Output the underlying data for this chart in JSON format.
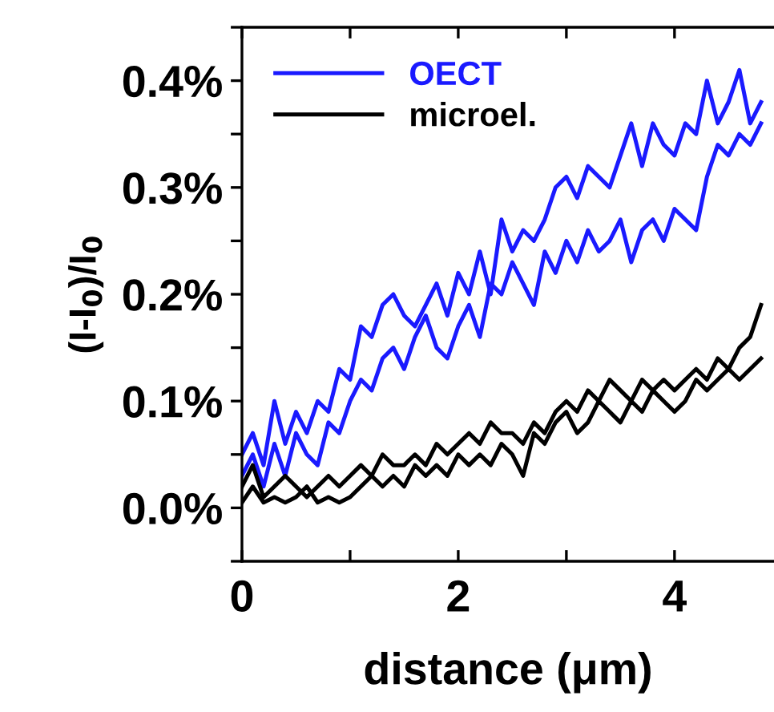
{
  "chart_data": {
    "type": "line",
    "xlabel": "distance (μm)",
    "ylabel": "(I-I$_{0}$)/I$_{0}$",
    "x": [
      0,
      0.1,
      0.2,
      0.3,
      0.4,
      0.5,
      0.6,
      0.7,
      0.8,
      0.9,
      1.0,
      1.1,
      1.2,
      1.3,
      1.4,
      1.5,
      1.6,
      1.7,
      1.8,
      1.9,
      2.0,
      2.1,
      2.2,
      2.3,
      2.4,
      2.5,
      2.6,
      2.7,
      2.8,
      2.9,
      3.0,
      3.1,
      3.2,
      3.3,
      3.4,
      3.5,
      3.6,
      3.7,
      3.8,
      3.9,
      4.0,
      4.1,
      4.2,
      4.3,
      4.4,
      4.5,
      4.6,
      4.7,
      4.8
    ],
    "series": [
      {
        "name": "OECT",
        "color": "#1a1aff",
        "values": [
          0.05,
          0.07,
          0.04,
          0.1,
          0.06,
          0.09,
          0.07,
          0.1,
          0.09,
          0.13,
          0.12,
          0.17,
          0.16,
          0.19,
          0.2,
          0.18,
          0.17,
          0.19,
          0.21,
          0.18,
          0.22,
          0.2,
          0.24,
          0.2,
          0.27,
          0.24,
          0.26,
          0.25,
          0.27,
          0.3,
          0.31,
          0.29,
          0.32,
          0.31,
          0.3,
          0.33,
          0.36,
          0.32,
          0.36,
          0.34,
          0.33,
          0.36,
          0.35,
          0.4,
          0.36,
          0.38,
          0.41,
          0.36,
          0.38
        ]
      },
      {
        "color": "#1a1aff",
        "values": [
          0.03,
          0.05,
          0.02,
          0.06,
          0.03,
          0.07,
          0.05,
          0.04,
          0.08,
          0.07,
          0.1,
          0.12,
          0.11,
          0.14,
          0.15,
          0.13,
          0.16,
          0.18,
          0.15,
          0.14,
          0.17,
          0.19,
          0.16,
          0.21,
          0.2,
          0.23,
          0.21,
          0.19,
          0.24,
          0.22,
          0.25,
          0.23,
          0.26,
          0.24,
          0.25,
          0.27,
          0.23,
          0.26,
          0.27,
          0.25,
          0.28,
          0.27,
          0.26,
          0.31,
          0.34,
          0.33,
          0.35,
          0.34,
          0.36
        ]
      },
      {
        "name": "microel.",
        "color": "#000000",
        "values": [
          0.02,
          0.04,
          0.01,
          0.02,
          0.03,
          0.02,
          0.01,
          0.02,
          0.03,
          0.02,
          0.03,
          0.04,
          0.03,
          0.05,
          0.04,
          0.04,
          0.05,
          0.04,
          0.06,
          0.05,
          0.06,
          0.07,
          0.06,
          0.08,
          0.07,
          0.07,
          0.06,
          0.08,
          0.07,
          0.09,
          0.1,
          0.09,
          0.11,
          0.1,
          0.12,
          0.11,
          0.1,
          0.12,
          0.11,
          0.12,
          0.11,
          0.12,
          0.13,
          0.12,
          0.14,
          0.13,
          0.15,
          0.16,
          0.19
        ]
      },
      {
        "color": "#000000",
        "values": [
          0.005,
          0.02,
          0.005,
          0.01,
          0.005,
          0.01,
          0.02,
          0.005,
          0.01,
          0.005,
          0.01,
          0.02,
          0.03,
          0.02,
          0.03,
          0.02,
          0.04,
          0.03,
          0.04,
          0.03,
          0.05,
          0.04,
          0.05,
          0.04,
          0.06,
          0.05,
          0.03,
          0.07,
          0.06,
          0.08,
          0.09,
          0.07,
          0.08,
          0.1,
          0.09,
          0.08,
          0.1,
          0.09,
          0.11,
          0.1,
          0.09,
          0.1,
          0.12,
          0.11,
          0.12,
          0.13,
          0.12,
          0.13,
          0.14
        ]
      }
    ],
    "xlim": [
      0,
      4.92
    ],
    "ylim": [
      -0.05,
      0.45
    ],
    "xticks": [
      0,
      {
        "value": 1,
        "label": null
      },
      2,
      {
        "value": 3,
        "label": null
      },
      4
    ],
    "yticks": [
      {
        "value": -0.05,
        "label": null
      },
      {
        "value": 0,
        "label": "0.0%"
      },
      {
        "value": 0.05,
        "label": null
      },
      {
        "value": 0.1,
        "label": "0.1%"
      },
      {
        "value": 0.15,
        "label": null
      },
      {
        "value": 0.2,
        "label": "0.2%"
      },
      {
        "value": 0.25,
        "label": null
      },
      {
        "value": 0.3,
        "label": "0.3%"
      },
      {
        "value": 0.35,
        "label": null
      },
      {
        "value": 0.4,
        "label": "0.4%"
      },
      {
        "value": 0.45,
        "label": null
      }
    ],
    "legend": "top left",
    "grid": false,
    "marker": "none",
    "line_style": "solid"
  }
}
